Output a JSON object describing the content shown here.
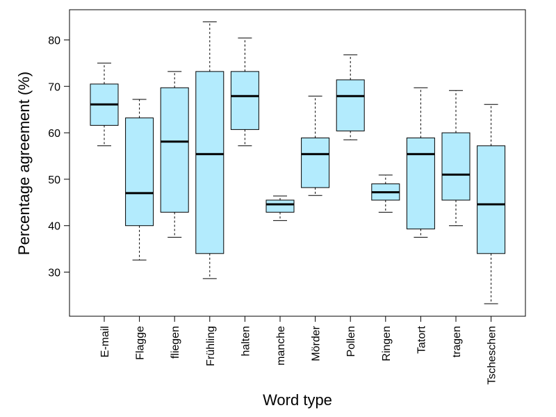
{
  "chart_data": {
    "type": "boxplot",
    "title": "",
    "xlabel": "Word type",
    "ylabel": "Percentage agreement (%)",
    "ylim": [
      20.5,
      86.5
    ],
    "yticks": [
      30,
      40,
      50,
      60,
      70,
      80
    ],
    "grid": false,
    "box_color": "#b3ebfd",
    "categories": [
      "E-mail",
      "Flagge",
      "fliegen",
      "Frühling",
      "halten",
      "manche",
      "Mörder",
      "Pollen",
      "Ringen",
      "Tatort",
      "tragen",
      "Tscheschen"
    ],
    "boxes": [
      {
        "min": 57.2,
        "q1": 61.6,
        "median": 66.1,
        "q3": 70.5,
        "max": 75.0
      },
      {
        "min": 32.6,
        "q1": 40.0,
        "median": 47.0,
        "q3": 63.2,
        "max": 67.2
      },
      {
        "min": 37.5,
        "q1": 42.9,
        "median": 58.1,
        "q3": 69.7,
        "max": 73.2
      },
      {
        "min": 28.6,
        "q1": 34.0,
        "median": 55.4,
        "q3": 73.2,
        "max": 83.9
      },
      {
        "min": 57.2,
        "q1": 60.7,
        "median": 67.9,
        "q3": 73.2,
        "max": 80.4
      },
      {
        "min": 41.1,
        "q1": 42.9,
        "median": 44.6,
        "q3": 45.5,
        "max": 46.4
      },
      {
        "min": 46.5,
        "q1": 48.2,
        "median": 55.4,
        "q3": 58.9,
        "max": 67.9
      },
      {
        "min": 58.5,
        "q1": 60.4,
        "median": 67.9,
        "q3": 71.4,
        "max": 76.8
      },
      {
        "min": 42.9,
        "q1": 45.5,
        "median": 47.2,
        "q3": 49.0,
        "max": 50.9
      },
      {
        "min": 37.5,
        "q1": 39.3,
        "median": 55.4,
        "q3": 58.9,
        "max": 69.7
      },
      {
        "min": 40.0,
        "q1": 45.5,
        "median": 51.0,
        "q3": 60.0,
        "max": 69.1
      },
      {
        "min": 23.2,
        "q1": 34.0,
        "median": 44.6,
        "q3": 57.2,
        "max": 66.1
      }
    ]
  }
}
